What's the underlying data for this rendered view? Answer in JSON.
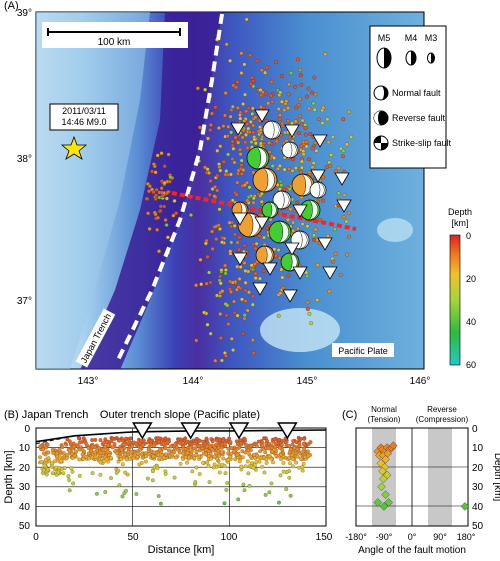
{
  "panels": {
    "a_label": "(A)",
    "b_label": "(B)",
    "c_label": "(C)"
  },
  "map": {
    "lat_ticks": [
      "39°",
      "38°",
      "37°"
    ],
    "lon_ticks": [
      "143°",
      "144°",
      "145°",
      "146°"
    ],
    "scale_bar": "100 km",
    "mainshock": {
      "date": "2011/03/11",
      "time_mag": "14:46 M9.0",
      "lon": 142.86,
      "lat": 38.1
    },
    "trench_label": "Japan Trench",
    "plate_label": "Pacific Plate",
    "legend": {
      "mag_labels": [
        "M5",
        "M4",
        "M3"
      ],
      "normal": "Normal fault",
      "reverse": "Reverse fault",
      "strike": "Strike-slip fault"
    },
    "colorbar": {
      "title_line1": "Depth",
      "title_line2": "[km]",
      "ticks": [
        "0",
        "20",
        "40",
        "60"
      ],
      "range": [
        0,
        60
      ]
    },
    "colors": {
      "ocean_deep": "#2a1f9e",
      "ocean_mid": "#5aa0d8",
      "ocean_light": "#b8d8ee",
      "trench_line": "#ffffff",
      "profile_line": "#ff2020",
      "mainshock_star": "#ffe600"
    }
  },
  "profile": {
    "title_left": "(B) Japan Trench",
    "title_right": "Outer trench slope (Pacific plate)",
    "ylabel": "Depth [km]",
    "xlabel": "Distance [km]",
    "x_ticks": [
      "0",
      "50",
      "100",
      "150"
    ],
    "y_ticks": [
      "0",
      "10",
      "20",
      "30",
      "40",
      "50"
    ]
  },
  "angle_panel": {
    "title_normal_1": "Normal",
    "title_normal_2": "(Tension)",
    "title_reverse_1": "Reverse",
    "title_reverse_2": "(Compression)",
    "x_ticks": [
      "-180°",
      "-90°",
      "0°",
      "90°",
      "180°"
    ],
    "xlabel": "Angle of the fault motion",
    "ylabel": "Depth [km]",
    "y_ticks": [
      "0",
      "10",
      "20",
      "30",
      "40",
      "50"
    ]
  },
  "chart_data": [
    {
      "type": "scatter",
      "xlabel": "Distance [km]",
      "ylabel": "Depth [km]",
      "xlim": [
        0,
        150
      ],
      "ylim": [
        50,
        0
      ],
      "note": "cross-section of seismicity",
      "stations_x": [
        55,
        80,
        105,
        130
      ],
      "topography": [
        [
          0,
          7
        ],
        [
          20,
          4
        ],
        [
          50,
          2
        ],
        [
          80,
          1.5
        ],
        [
          100,
          1.5
        ],
        [
          150,
          1
        ]
      ]
    },
    {
      "type": "scatter",
      "xlabel": "Angle of the fault motion",
      "ylabel": "Depth [km]",
      "xlim": [
        -180,
        180
      ],
      "ylim": [
        50,
        0
      ],
      "points": [
        [
          -110,
          12
        ],
        [
          -100,
          10
        ],
        [
          -95,
          11
        ],
        [
          -88,
          12
        ],
        [
          -80,
          10
        ],
        [
          -72,
          11
        ],
        [
          -65,
          10
        ],
        [
          -60,
          9
        ],
        [
          -105,
          14
        ],
        [
          -92,
          14
        ],
        [
          -85,
          16
        ],
        [
          -78,
          13
        ],
        [
          -100,
          18
        ],
        [
          -88,
          20
        ],
        [
          -95,
          22
        ],
        [
          -80,
          24
        ],
        [
          -92,
          26
        ],
        [
          -98,
          30
        ],
        [
          -85,
          34
        ],
        [
          -110,
          38
        ],
        [
          -90,
          40
        ],
        [
          -75,
          38
        ],
        [
          170,
          40
        ]
      ]
    }
  ]
}
